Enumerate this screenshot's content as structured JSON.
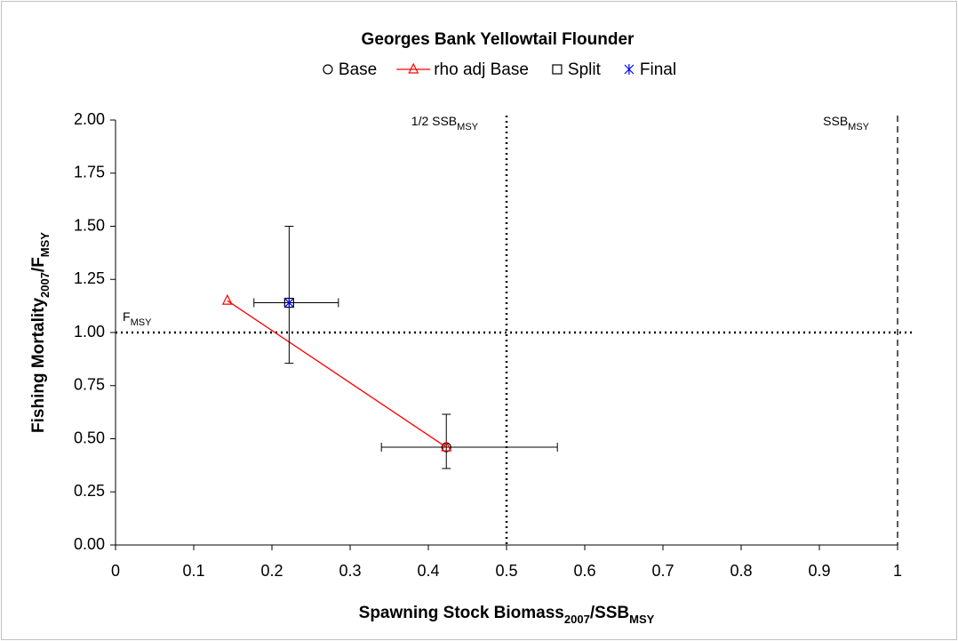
{
  "chart_data": {
    "type": "scatter",
    "title": "Georges Bank Yellowtail Flounder",
    "xlabel": [
      "Spawning Stock Biomass",
      "2007",
      "/SSB",
      "MSY"
    ],
    "ylabel": [
      "Fishing Mortality",
      "2007",
      "/F",
      "MSY"
    ],
    "xlim": [
      0,
      1
    ],
    "ylim": [
      0,
      2
    ],
    "xticks": [
      0,
      0.1,
      0.2,
      0.3,
      0.4,
      0.5,
      0.6,
      0.7,
      0.8,
      0.9,
      1
    ],
    "yticks": [
      {
        "value": 0,
        "label": "0.00"
      },
      {
        "value": 0.25,
        "label": "0.25"
      },
      {
        "value": 0.5,
        "label": "0.50"
      },
      {
        "value": 0.75,
        "label": "0.75"
      },
      {
        "value": 1,
        "label": "1.00"
      },
      {
        "value": 1.25,
        "label": "1.25"
      },
      {
        "value": 1.5,
        "label": "1.50"
      },
      {
        "value": 1.75,
        "label": "1.75"
      },
      {
        "value": 2,
        "label": "2.00"
      }
    ],
    "series": [
      {
        "name": "Base",
        "color": "#000000",
        "marker": "circle",
        "x": [
          0.423
        ],
        "y": [
          0.46
        ],
        "x_low": [
          0.34
        ],
        "x_high": [
          0.565
        ],
        "y_low": [
          0.36
        ],
        "y_high": [
          0.615
        ]
      },
      {
        "name": "rho adj Base",
        "color": "#ff0000",
        "marker": "triangle",
        "line": true,
        "x": [
          0.143,
          0.423
        ],
        "y": [
          1.15,
          0.46
        ]
      },
      {
        "name": "Split",
        "color": "#000000",
        "marker": "square",
        "x": [
          0.222
        ],
        "y": [
          1.14
        ],
        "x_low": [
          0.177
        ],
        "x_high": [
          0.285
        ],
        "y_low": [
          0.855
        ],
        "y_high": [
          1.5
        ]
      },
      {
        "name": "Final",
        "color": "#0000ff",
        "marker": "asterisk",
        "x": [
          0.222
        ],
        "y": [
          1.14
        ]
      }
    ],
    "reference_lines": [
      {
        "axis": "x",
        "value": 0.5,
        "style": "dotted",
        "label": [
          "1/2 SSB",
          "MSY"
        ]
      },
      {
        "axis": "x",
        "value": 1,
        "style": "dashed",
        "label": [
          "SSB",
          "MSY"
        ]
      },
      {
        "axis": "y",
        "value": 1,
        "style": "dotted",
        "label": [
          "F",
          "MSY"
        ]
      }
    ]
  }
}
